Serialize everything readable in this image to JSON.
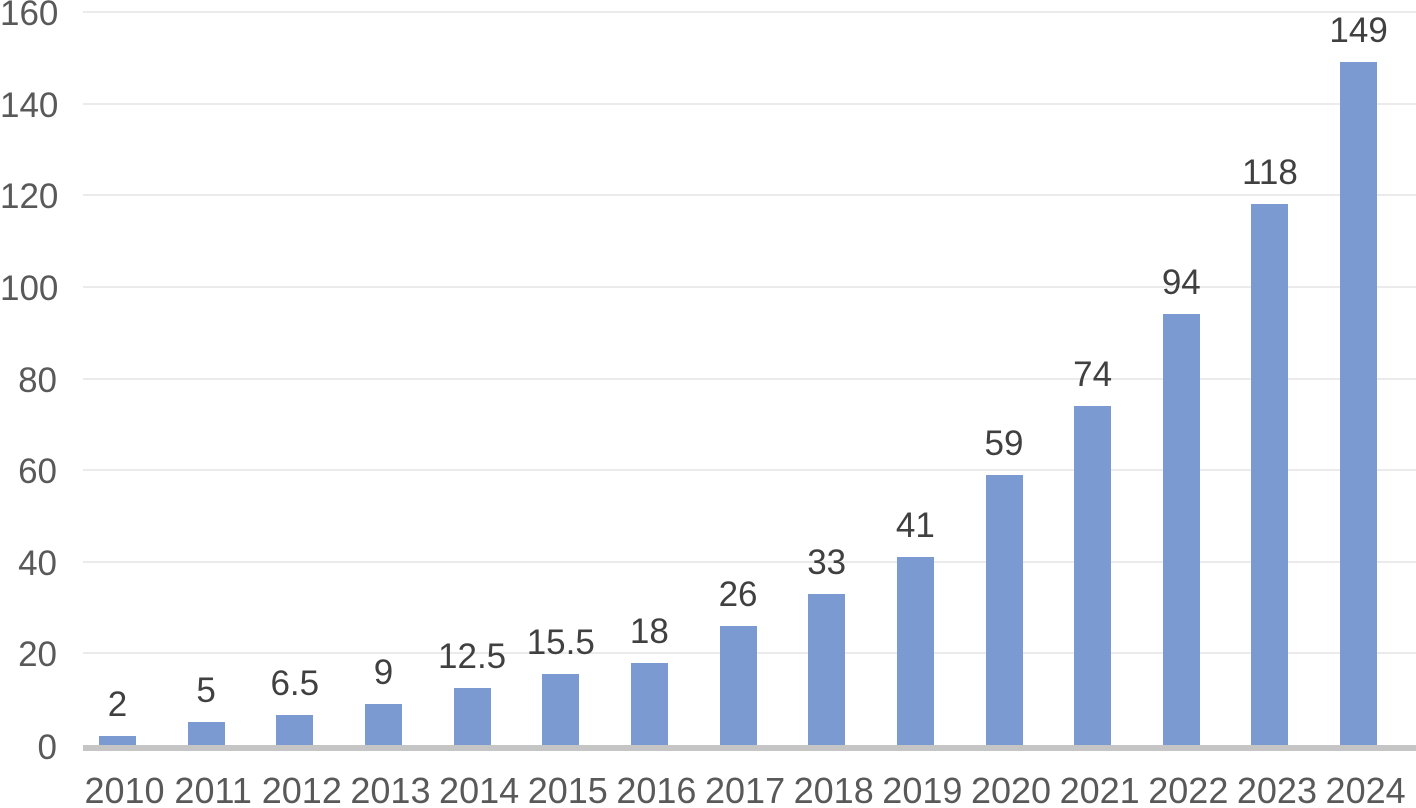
{
  "chart_data": {
    "type": "bar",
    "title": "",
    "xlabel": "",
    "ylabel": "",
    "categories": [
      "2010",
      "2011",
      "2012",
      "2013",
      "2014",
      "2015",
      "2016",
      "2017",
      "2018",
      "2019",
      "2020",
      "2021",
      "2022",
      "2023",
      "2024"
    ],
    "values": [
      2,
      5,
      6.5,
      9,
      12.5,
      15.5,
      18,
      26,
      33,
      41,
      59,
      74,
      94,
      118,
      149
    ],
    "data_labels": [
      "2",
      "5",
      "6.5",
      "9",
      "12.5",
      "15.5",
      "18",
      "26",
      "33",
      "41",
      "59",
      "74",
      "94",
      "118",
      "149"
    ],
    "ylim": [
      0,
      160
    ],
    "yticks": [
      0,
      20,
      40,
      60,
      80,
      100,
      120,
      140,
      160
    ],
    "grid": true,
    "legend": false,
    "colors": {
      "bar_fill": "#7c9ad2",
      "gridline": "#ebebeb",
      "axis_line": "#c5c5c5",
      "tick_label": "#595959",
      "data_label": "#404040",
      "background": "#ffffff"
    }
  }
}
